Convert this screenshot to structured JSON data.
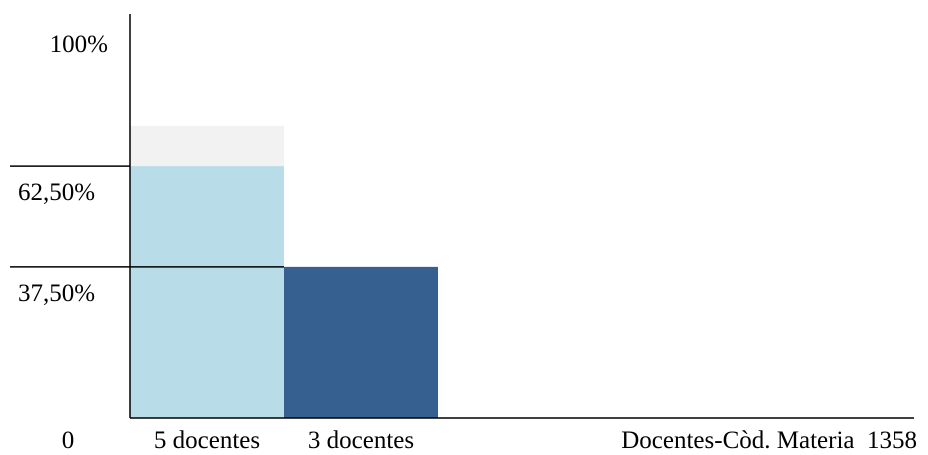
{
  "chart_data": {
    "type": "bar",
    "categories": [
      "5 docentes",
      "3 docentes"
    ],
    "values": [
      62.5,
      37.5
    ],
    "value_labels": [
      "62,50%",
      "37,50%"
    ],
    "bar_colors": [
      "#b8dde9",
      "#36608f"
    ],
    "background_band_color": "#f2f2f2",
    "background_band_value": 72.5,
    "ylim": [
      0,
      100
    ],
    "y_top_label": "100%",
    "origin_label": "0",
    "xlabel": "Docentes-Còd. Materia  1358",
    "grid": false,
    "legend": "none"
  }
}
